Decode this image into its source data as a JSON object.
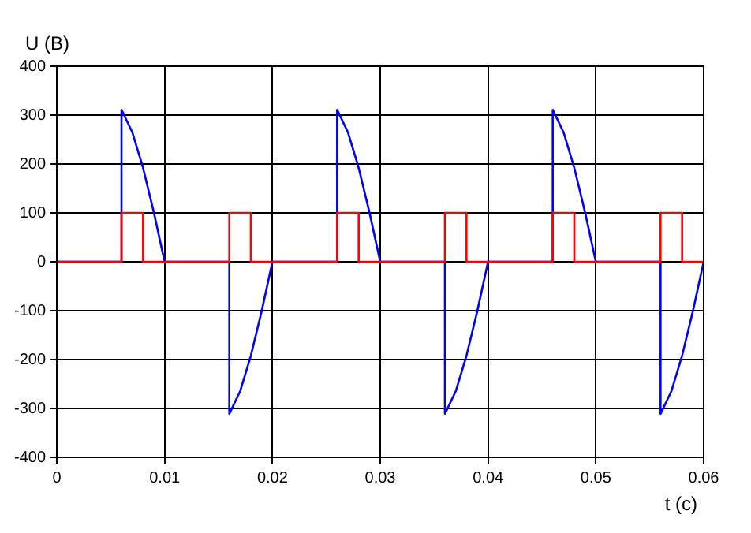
{
  "chart_data": {
    "type": "line",
    "xlabel": "t (c)",
    "ylabel": "U (B)",
    "xlim": [
      0,
      0.06
    ],
    "xticks": [
      0,
      0.01,
      0.02,
      0.03,
      0.04,
      0.05,
      0.06
    ],
    "ylim": [
      -400,
      400
    ],
    "yticks": [
      -400,
      -300,
      -200,
      -100,
      0,
      100,
      200,
      300,
      400
    ],
    "grid": true,
    "legend": false,
    "marker": "none",
    "line_style": "solid",
    "series": [
      {
        "color": "#ff0000",
        "x": [
          0,
          0.006,
          0.006,
          0.008,
          0.008,
          0.016,
          0.016,
          0.018,
          0.018,
          0.026,
          0.026,
          0.028,
          0.028,
          0.036,
          0.036,
          0.038,
          0.038,
          0.046,
          0.046,
          0.048,
          0.048,
          0.056,
          0.056,
          0.058,
          0.058,
          0.06
        ],
        "values": [
          0,
          0,
          100,
          100,
          0,
          0,
          100,
          100,
          0,
          0,
          100,
          100,
          0,
          0,
          100,
          100,
          0,
          0,
          100,
          100,
          0,
          0,
          100,
          100,
          0,
          0
        ]
      },
      {
        "color": "#0000ff",
        "x": [
          0,
          0.006,
          0.006,
          0.007,
          0.008,
          0.009,
          0.01,
          0.016,
          0.016,
          0.017,
          0.018,
          0.019,
          0.02,
          0.026,
          0.026,
          0.027,
          0.028,
          0.029,
          0.03,
          0.036,
          0.036,
          0.037,
          0.038,
          0.039,
          0.04,
          0.046,
          0.046,
          0.047,
          0.048,
          0.049,
          0.05,
          0.056,
          0.056,
          0.057,
          0.058,
          0.059,
          0.06
        ],
        "values": [
          0,
          0,
          311,
          265,
          192,
          101,
          0,
          0,
          -311,
          -265,
          -192,
          -101,
          0,
          0,
          311,
          265,
          192,
          101,
          0,
          0,
          -311,
          -265,
          -192,
          -101,
          0,
          0,
          311,
          265,
          192,
          101,
          0,
          0,
          -311,
          -265,
          -192,
          -101,
          0
        ]
      }
    ]
  }
}
